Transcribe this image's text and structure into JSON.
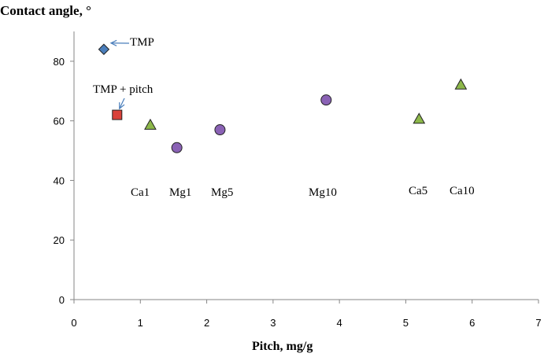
{
  "chart_data": {
    "type": "scatter",
    "title": "",
    "ylabel": "Contact angle, °",
    "xlabel": "Pitch, mg/g",
    "xlim": [
      0,
      7
    ],
    "ylim": [
      0,
      90
    ],
    "xticks": [
      0,
      1,
      2,
      3,
      4,
      5,
      6,
      7
    ],
    "yticks": [
      0,
      20,
      40,
      60,
      80
    ],
    "grid": false,
    "points": [
      {
        "label": "TMP",
        "x": 0.45,
        "y": 84,
        "marker": "diamond",
        "color": "#4a7ebb"
      },
      {
        "label": "TMP + pitch",
        "x": 0.65,
        "y": 62,
        "marker": "square",
        "color": "#d9413a"
      },
      {
        "label": "Ca1",
        "x": 1.15,
        "y": 58.5,
        "marker": "triangle",
        "color": "#8db84a"
      },
      {
        "label": "Mg1",
        "x": 1.55,
        "y": 51,
        "marker": "circle",
        "color": "#8a62b5"
      },
      {
        "label": "Mg5",
        "x": 2.2,
        "y": 57,
        "marker": "circle",
        "color": "#8a62b5"
      },
      {
        "label": "Mg10",
        "x": 3.8,
        "y": 67,
        "marker": "circle",
        "color": "#8a62b5"
      },
      {
        "label": "Ca5",
        "x": 5.2,
        "y": 60.5,
        "marker": "triangle",
        "color": "#8db84a"
      },
      {
        "label": "Ca10",
        "x": 5.83,
        "y": 72,
        "marker": "triangle",
        "color": "#8db84a"
      }
    ],
    "arrow_color": "#4a7ebb"
  }
}
